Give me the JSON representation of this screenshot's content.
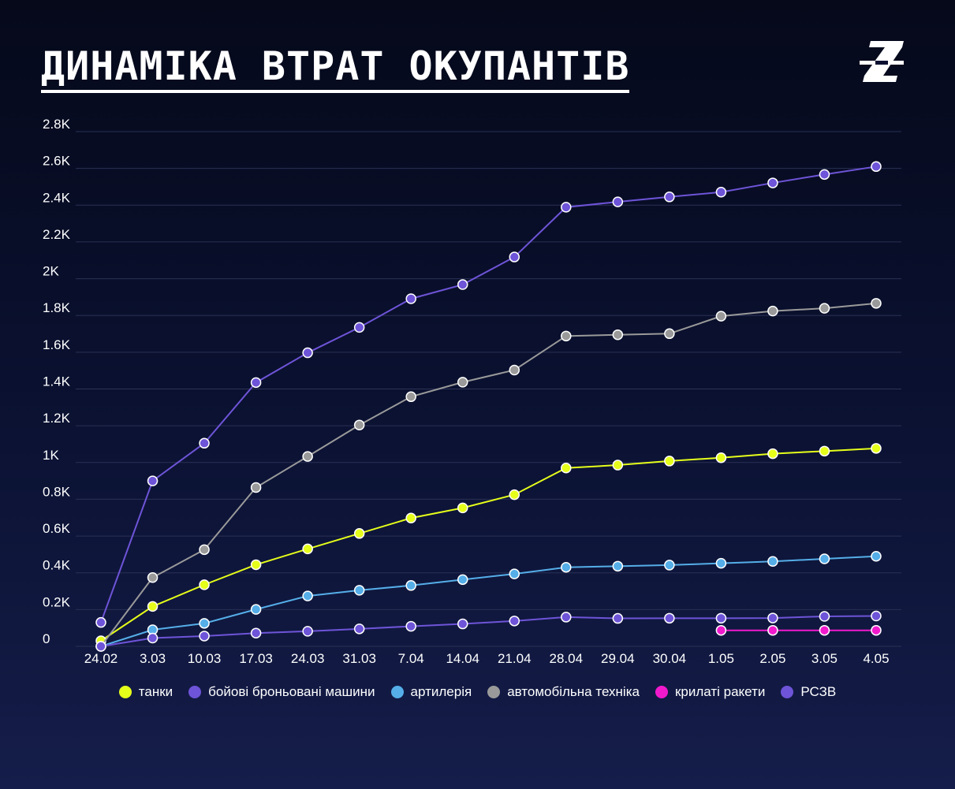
{
  "title": "ДИНАМІКА ВТРАТ ОКУПАНТІВ",
  "logo_icon": "brand-z-logo-icon",
  "colors": {
    "background_top": "#05091a",
    "background_bottom": "#151d4a",
    "grid": "#2a3154",
    "text": "#ffffff"
  },
  "chart_data": {
    "type": "line",
    "title": "ДИНАМІКА ВТРАТ ОКУПАНТІВ",
    "xlabel": "",
    "ylabel": "",
    "ylim": [
      0,
      2800
    ],
    "yticks": [
      0,
      200,
      400,
      600,
      800,
      1000,
      1200,
      1400,
      1600,
      1800,
      2000,
      2200,
      2400,
      2600,
      2800
    ],
    "ytick_labels": [
      "0",
      "0.2K",
      "0.4K",
      "0.6K",
      "0.8K",
      "1K",
      "1.2K",
      "1.4K",
      "1.6K",
      "1.8K",
      "2K",
      "2.2K",
      "2.4K",
      "2.6K",
      "2.8K"
    ],
    "grid": true,
    "legend_position": "bottom",
    "categories": [
      "24.02",
      "3.03",
      "10.03",
      "17.03",
      "24.03",
      "31.03",
      "7.04",
      "14.04",
      "21.04",
      "28.04",
      "29.04",
      "30.04",
      "1.05",
      "2.05",
      "3.05",
      "4.05"
    ],
    "series": [
      {
        "name": "танки",
        "color": "#e6ff1a",
        "values": [
          30,
          217,
          335,
          444,
          530,
          614,
          698,
          753,
          825,
          970,
          986,
          1008,
          1026,
          1048,
          1062,
          1077
        ]
      },
      {
        "name": "бойові броньовані машини",
        "color": "#6e54d8",
        "values": [
          130,
          900,
          1105,
          1435,
          1597,
          1735,
          1891,
          1968,
          2118,
          2389,
          2418,
          2445,
          2471,
          2521,
          2567,
          2610
        ]
      },
      {
        "name": "артилерія",
        "color": "#55aee8",
        "values": [
          0,
          90,
          125,
          201,
          274,
          305,
          331,
          363,
          394,
          430,
          436,
          442,
          452,
          462,
          476,
          490
        ]
      },
      {
        "name": "автомобільна техніка",
        "color": "#9a9a9a",
        "values": [
          0,
          374,
          526,
          864,
          1033,
          1204,
          1358,
          1437,
          1503,
          1688,
          1695,
          1701,
          1796,
          1824,
          1839,
          1866
        ]
      },
      {
        "name": "крилаті ракети",
        "color": "#f01acc",
        "values": [
          null,
          null,
          null,
          null,
          null,
          null,
          null,
          null,
          null,
          null,
          null,
          null,
          87,
          87,
          87,
          87
        ]
      },
      {
        "name": "РСЗВ",
        "color": "#6e54d8",
        "values": [
          0,
          45,
          56,
          72,
          82,
          95,
          109,
          122,
          138,
          159,
          152,
          153,
          153,
          154,
          163,
          165
        ]
      }
    ]
  }
}
